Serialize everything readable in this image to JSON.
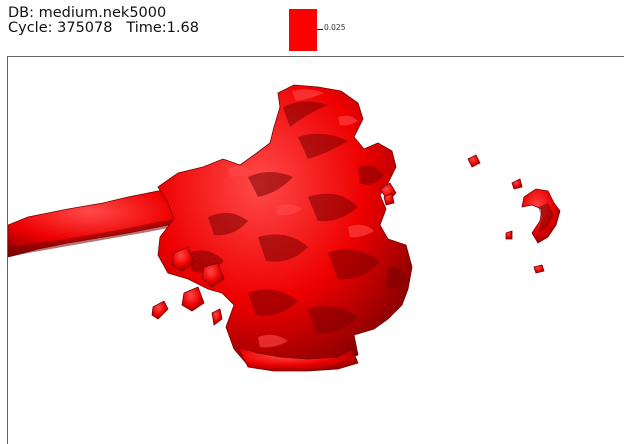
{
  "header": {
    "db_label": "DB: medium.nek5000",
    "cycle_label": "Cycle: 375078",
    "time_label": "Time:1.68"
  },
  "legend": {
    "value_label": "0.025",
    "color": "#ff0000"
  },
  "plot": {
    "surface_color": "#ee0000",
    "shadow_color": "#7a0000",
    "highlight_color": "#ff4a4a",
    "background": "#ffffff"
  }
}
